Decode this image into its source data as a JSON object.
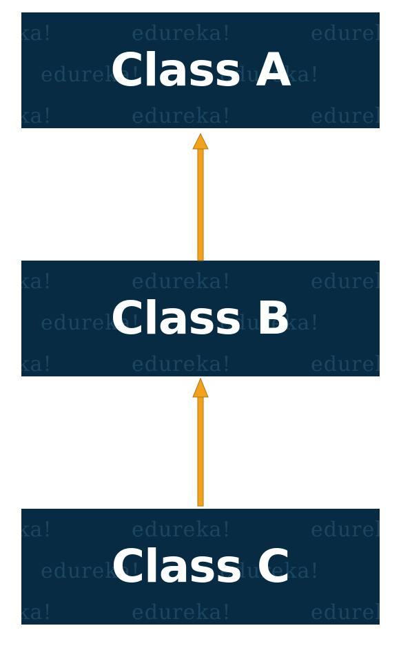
{
  "colors": {
    "box_fill": "#062b43",
    "label_text": "#ffffff",
    "watermark_text": "#1b4560",
    "arrow_fill": "#f2a21a",
    "arrow_outline": "#b37610"
  },
  "watermark": "edureka!",
  "boxes": [
    {
      "label": "Class A"
    },
    {
      "label": "Class B"
    },
    {
      "label": "Class C"
    }
  ],
  "edges": [
    {
      "from": "Class B",
      "to": "Class A"
    },
    {
      "from": "Class C",
      "to": "Class B"
    }
  ]
}
